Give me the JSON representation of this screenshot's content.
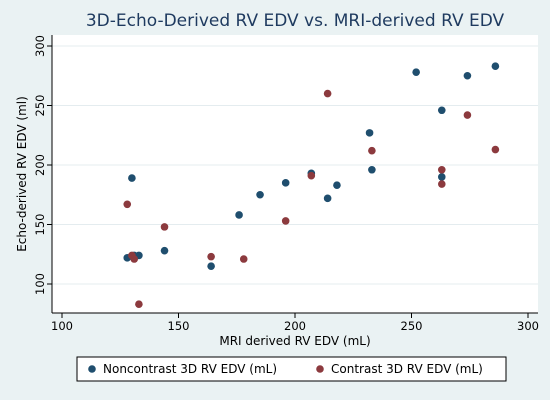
{
  "chart_data": {
    "type": "scatter",
    "title": "3D-Echo-Derived RV EDV vs. MRI-derived RV EDV",
    "xlabel": "MRI derived RV EDV (mL)",
    "ylabel": "Echo-derived RV EDV (ml)",
    "xlim": [
      100,
      300
    ],
    "ylim": [
      100,
      300
    ],
    "xticks": [
      "100",
      "150",
      "200",
      "250",
      "300"
    ],
    "yticks": [
      "100",
      "150",
      "200",
      "250",
      "300"
    ],
    "grid": true,
    "legend_position": "bottom",
    "series": [
      {
        "name": "Noncontrast 3D RV EDV (mL)",
        "color": "#1f4e6e",
        "points": [
          [
            128,
            122
          ],
          [
            130,
            189
          ],
          [
            131,
            124
          ],
          [
            133,
            124
          ],
          [
            144,
            128
          ],
          [
            164,
            115
          ],
          [
            176,
            158
          ],
          [
            185,
            175
          ],
          [
            196,
            185
          ],
          [
            207,
            193
          ],
          [
            214,
            172
          ],
          [
            218,
            183
          ],
          [
            232,
            227
          ],
          [
            233,
            196
          ],
          [
            252,
            278
          ],
          [
            263,
            246
          ],
          [
            263,
            190
          ],
          [
            274,
            275
          ],
          [
            286,
            283
          ]
        ]
      },
      {
        "name": "Contrast 3D RV EDV (mL)",
        "color": "#8c3a3e",
        "points": [
          [
            128,
            167
          ],
          [
            130,
            124
          ],
          [
            131,
            121
          ],
          [
            133,
            83
          ],
          [
            144,
            148
          ],
          [
            164,
            123
          ],
          [
            178,
            121
          ],
          [
            196,
            153
          ],
          [
            207,
            191
          ],
          [
            214,
            260
          ],
          [
            233,
            212
          ],
          [
            263,
            196
          ],
          [
            263,
            184
          ],
          [
            274,
            242
          ],
          [
            286,
            213
          ]
        ]
      }
    ]
  }
}
